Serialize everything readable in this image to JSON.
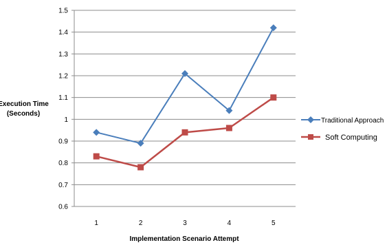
{
  "chart_data": {
    "type": "line",
    "x": [
      1,
      2,
      3,
      4,
      5
    ],
    "xlabel": "Implementation Scenario Attempt",
    "ylabel": [
      "Execution Time",
      "(Seconds)"
    ],
    "ylim": [
      0.6,
      1.5
    ],
    "yticks": [
      "0.6",
      "0.7",
      "0.8",
      "0.9",
      "1",
      "1.1",
      "1.2",
      "1.3",
      "1.4",
      "1.5"
    ],
    "xticks": [
      "1",
      "2",
      "3",
      "4",
      "5"
    ],
    "grid": "horizontal",
    "legend_position": "right",
    "series": [
      {
        "name": "Traditional Approach",
        "values": [
          0.94,
          0.89,
          1.21,
          1.04,
          1.42
        ],
        "color": "#4a7ebb",
        "marker": "diamond"
      },
      {
        "name": "Soft Computing",
        "values": [
          0.83,
          0.78,
          0.94,
          0.96,
          1.1
        ],
        "color": "#be4b48",
        "marker": "square"
      }
    ]
  }
}
